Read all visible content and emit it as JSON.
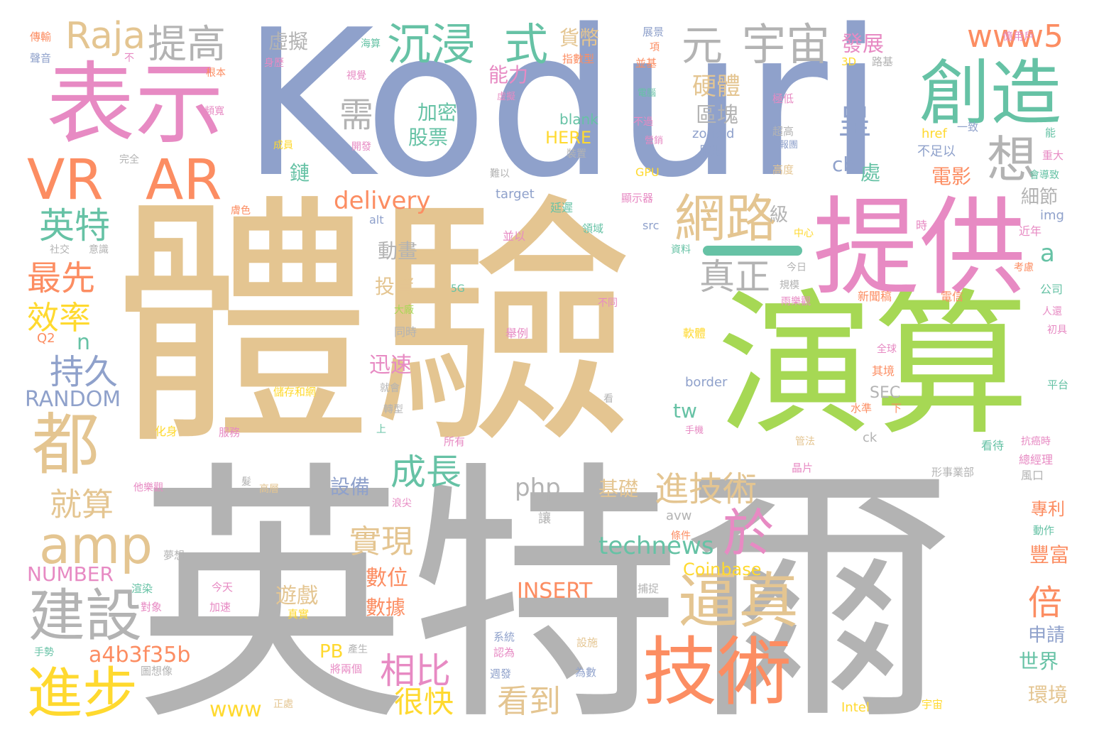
{
  "palette": {
    "tan": "#E4C591",
    "periwinkle": "#8FA1CB",
    "green": "#A6D854",
    "pink": "#E78AC3",
    "orange": "#FC8D62",
    "teal": "#66C2A5",
    "gray": "#B3B3B3",
    "yellow": "#FFD92F"
  },
  "words": [
    {
      "text": "體驗",
      "color": "tan"
    },
    {
      "text": "Koduri",
      "color": "periwinkle"
    },
    {
      "text": "英特爾",
      "color": "gray"
    },
    {
      "text": "演算",
      "color": "green"
    },
    {
      "text": "提供",
      "color": "pink"
    },
    {
      "text": "表示",
      "color": "pink"
    },
    {
      "text": "創造",
      "color": "teal"
    },
    {
      "text": "VR",
      "color": "orange"
    },
    {
      "text": "AR",
      "color": "orange"
    },
    {
      "text": "技術",
      "color": "orange"
    },
    {
      "text": "都",
      "color": "tan"
    },
    {
      "text": "網路",
      "color": "tan"
    },
    {
      "text": "逼真",
      "color": "tan"
    },
    {
      "text": "建設",
      "color": "gray"
    },
    {
      "text": "進步",
      "color": "yellow"
    },
    {
      "text": "amp",
      "color": "tan"
    },
    {
      "text": "沉浸",
      "color": "teal"
    },
    {
      "text": "式",
      "color": "teal"
    },
    {
      "text": "元",
      "color": "gray"
    },
    {
      "text": "宇宙",
      "color": "gray"
    },
    {
      "text": "提高",
      "color": "gray"
    },
    {
      "text": "Raja",
      "color": "tan"
    },
    {
      "text": "想",
      "color": "gray"
    },
    {
      "text": "英特",
      "color": "teal"
    },
    {
      "text": "最先",
      "color": "orange"
    },
    {
      "text": "效率",
      "color": "yellow"
    },
    {
      "text": "持久",
      "color": "periwinkle"
    },
    {
      "text": "就算",
      "color": "tan"
    },
    {
      "text": "於",
      "color": "pink"
    },
    {
      "text": "進技術",
      "color": "tan"
    },
    {
      "text": "真正",
      "color": "gray"
    },
    {
      "text": "成長",
      "color": "teal"
    },
    {
      "text": "相比",
      "color": "pink"
    },
    {
      "text": "很快",
      "color": "yellow"
    },
    {
      "text": "看到",
      "color": "tan"
    },
    {
      "text": "實現",
      "color": "tan"
    },
    {
      "text": "www5",
      "color": "orange"
    },
    {
      "text": "需",
      "color": "gray"
    },
    {
      "text": "呈",
      "color": "periwinkle"
    },
    {
      "text": "倍",
      "color": "orange"
    },
    {
      "text": "technews",
      "color": "teal"
    },
    {
      "text": "php",
      "color": "gray"
    },
    {
      "text": "delivery",
      "color": "orange"
    },
    {
      "text": "a4b3f35b",
      "color": "orange"
    },
    {
      "text": "www",
      "color": "yellow"
    },
    {
      "text": "INSERT",
      "color": "orange"
    },
    {
      "text": "Coinbase",
      "color": "yellow"
    },
    {
      "text": "RANDOM",
      "color": "periwinkle"
    },
    {
      "text": "NUMBER",
      "color": "pink"
    },
    {
      "text": "硬體",
      "color": "tan"
    },
    {
      "text": "區塊",
      "color": "gray"
    },
    {
      "text": "發展",
      "color": "pink"
    },
    {
      "text": "貨幣",
      "color": "tan"
    },
    {
      "text": "虛擬",
      "color": "gray"
    },
    {
      "text": "能力",
      "color": "pink"
    },
    {
      "text": "加密",
      "color": "teal"
    },
    {
      "text": "股票",
      "color": "teal"
    },
    {
      "text": "鏈",
      "color": "teal"
    },
    {
      "text": "電影",
      "color": "orange"
    },
    {
      "text": "cb",
      "color": "periwinkle"
    },
    {
      "text": "處",
      "color": "teal"
    },
    {
      "text": "細節",
      "color": "gray"
    },
    {
      "text": "級",
      "color": "gray"
    },
    {
      "text": "動畫",
      "color": "gray"
    },
    {
      "text": "投資",
      "color": "tan"
    },
    {
      "text": "迅速",
      "color": "pink"
    },
    {
      "text": "a",
      "color": "teal"
    },
    {
      "text": "n",
      "color": "teal"
    },
    {
      "text": "tw",
      "color": "teal"
    },
    {
      "text": "SEC",
      "color": "gray"
    },
    {
      "text": "世界",
      "color": "teal"
    },
    {
      "text": "申請",
      "color": "periwinkle"
    },
    {
      "text": "環境",
      "color": "tan"
    },
    {
      "text": "豐富",
      "color": "orange"
    },
    {
      "text": "專利",
      "color": "orange"
    },
    {
      "text": "設備",
      "color": "periwinkle"
    },
    {
      "text": "基礎",
      "color": "tan"
    },
    {
      "text": "數位",
      "color": "orange"
    },
    {
      "text": "數據",
      "color": "orange"
    },
    {
      "text": "遊戲",
      "color": "tan"
    },
    {
      "text": "PB",
      "color": "yellow"
    },
    {
      "text": "HERE",
      "color": "yellow"
    },
    {
      "text": "blank",
      "color": "teal"
    },
    {
      "text": "zoneid",
      "color": "periwinkle"
    },
    {
      "text": "服裝",
      "color": "periwinkle"
    },
    {
      "text": "href",
      "color": "yellow"
    },
    {
      "text": "一致",
      "color": "periwinkle"
    },
    {
      "text": "不足以",
      "color": "periwinkle"
    },
    {
      "text": "target",
      "color": "periwinkle"
    },
    {
      "text": "GPU",
      "color": "yellow"
    },
    {
      "text": "img",
      "color": "periwinkle"
    },
    {
      "text": "src",
      "color": "periwinkle"
    },
    {
      "text": "alt",
      "color": "periwinkle"
    },
    {
      "text": "border",
      "color": "periwinkle"
    },
    {
      "text": "ck",
      "color": "gray"
    },
    {
      "text": "avw",
      "color": "gray"
    },
    {
      "text": "Intel",
      "color": "yellow"
    },
    {
      "text": "Q2",
      "color": "orange"
    },
    {
      "text": "延遲",
      "color": "teal"
    },
    {
      "text": "傳輸",
      "color": "orange"
    },
    {
      "text": "聲音",
      "color": "periwinkle"
    },
    {
      "text": "不",
      "color": "pink"
    },
    {
      "text": "根本",
      "color": "orange"
    },
    {
      "text": "頻寬",
      "color": "pink"
    },
    {
      "text": "身歷",
      "color": "pink"
    },
    {
      "text": "視覺",
      "color": "pink"
    },
    {
      "text": "指數型",
      "color": "orange"
    },
    {
      "text": "億用戶",
      "color": "pink"
    },
    {
      "text": "展景",
      "color": "periwinkle"
    },
    {
      "text": "並基",
      "color": "orange"
    },
    {
      "text": "3D",
      "color": "yellow"
    },
    {
      "text": "路基",
      "color": "gray"
    },
    {
      "text": "極低",
      "color": "pink"
    },
    {
      "text": "不過",
      "color": "pink"
    },
    {
      "text": "超高",
      "color": "gray"
    },
    {
      "text": "成員",
      "color": "yellow"
    },
    {
      "text": "開發",
      "color": "pink"
    },
    {
      "text": "完全",
      "color": "gray"
    },
    {
      "text": "裝置",
      "color": "gray"
    },
    {
      "text": "難以",
      "color": "gray"
    },
    {
      "text": "高度",
      "color": "tan"
    },
    {
      "text": "重大",
      "color": "pink"
    },
    {
      "text": "會導致",
      "color": "teal"
    },
    {
      "text": "顯示器",
      "color": "pink"
    },
    {
      "text": "領域",
      "color": "teal"
    },
    {
      "text": "膚色",
      "color": "orange"
    },
    {
      "text": "社交",
      "color": "gray"
    },
    {
      "text": "意識",
      "color": "gray"
    },
    {
      "text": "並以",
      "color": "pink"
    },
    {
      "text": "中心",
      "color": "yellow"
    },
    {
      "text": "時",
      "color": "pink"
    },
    {
      "text": "近年",
      "color": "pink"
    },
    {
      "text": "資料",
      "color": "teal"
    },
    {
      "text": "今日",
      "color": "gray"
    },
    {
      "text": "規模",
      "color": "gray"
    },
    {
      "text": "考慮",
      "color": "orange"
    },
    {
      "text": "公司",
      "color": "teal"
    },
    {
      "text": "5G",
      "color": "teal"
    },
    {
      "text": "大廠",
      "color": "green"
    },
    {
      "text": "不同",
      "color": "pink"
    },
    {
      "text": "雨樂觀",
      "color": "pink"
    },
    {
      "text": "新聞稿",
      "color": "orange"
    },
    {
      "text": "電信",
      "color": "orange"
    },
    {
      "text": "人還",
      "color": "pink"
    },
    {
      "text": "初具",
      "color": "pink"
    },
    {
      "text": "同時",
      "color": "gray"
    },
    {
      "text": "舉例",
      "color": "pink"
    },
    {
      "text": "軟體",
      "color": "yellow"
    },
    {
      "text": "全球",
      "color": "pink"
    },
    {
      "text": "其境",
      "color": "orange"
    },
    {
      "text": "平台",
      "color": "teal"
    },
    {
      "text": "儲存和網",
      "color": "yellow"
    },
    {
      "text": "就會",
      "color": "gray"
    },
    {
      "text": "轉型",
      "color": "gray"
    },
    {
      "text": "看",
      "color": "gray"
    },
    {
      "text": "水準",
      "color": "orange"
    },
    {
      "text": "下",
      "color": "orange"
    },
    {
      "text": "化身",
      "color": "yellow"
    },
    {
      "text": "服務",
      "color": "pink"
    },
    {
      "text": "上",
      "color": "teal"
    },
    {
      "text": "所有",
      "color": "pink"
    },
    {
      "text": "手機",
      "color": "pink"
    },
    {
      "text": "管法",
      "color": "tan"
    },
    {
      "text": "看待",
      "color": "teal"
    },
    {
      "text": "抗癌時",
      "color": "pink"
    },
    {
      "text": "總經理",
      "color": "pink"
    },
    {
      "text": "他樂觀",
      "color": "pink"
    },
    {
      "text": "髮",
      "color": "gray"
    },
    {
      "text": "高層",
      "color": "tan"
    },
    {
      "text": "晶片",
      "color": "pink"
    },
    {
      "text": "形事業部",
      "color": "gray"
    },
    {
      "text": "風口",
      "color": "gray"
    },
    {
      "text": "浪尖",
      "color": "pink"
    },
    {
      "text": "讓",
      "color": "gray"
    },
    {
      "text": "條件",
      "color": "orange"
    },
    {
      "text": "動作",
      "color": "teal"
    },
    {
      "text": "夢想",
      "color": "gray"
    },
    {
      "text": "渲染",
      "color": "teal"
    },
    {
      "text": "今天",
      "color": "pink"
    },
    {
      "text": "捕捉",
      "color": "gray"
    },
    {
      "text": "對象",
      "color": "pink"
    },
    {
      "text": "加速",
      "color": "pink"
    },
    {
      "text": "真實",
      "color": "yellow"
    },
    {
      "text": "手勢",
      "color": "teal"
    },
    {
      "text": "產生",
      "color": "gray"
    },
    {
      "text": "系統",
      "color": "periwinkle"
    },
    {
      "text": "認為",
      "color": "pink"
    },
    {
      "text": "設施",
      "color": "tan"
    },
    {
      "text": "將兩個",
      "color": "pink"
    },
    {
      "text": "週發",
      "color": "periwinkle"
    },
    {
      "text": "為數",
      "color": "periwinkle"
    },
    {
      "text": "圖想像",
      "color": "gray"
    },
    {
      "text": "正處",
      "color": "tan"
    },
    {
      "text": "宇宙",
      "color": "yellow"
    },
    {
      "text": "海算",
      "color": "teal"
    },
    {
      "text": "電腦",
      "color": "teal"
    },
    {
      "text": "營銷",
      "color": "pink"
    },
    {
      "text": "報團",
      "color": "periwinkle"
    },
    {
      "text": "虛擬",
      "color": "pink"
    },
    {
      "text": "項",
      "color": "orange"
    },
    {
      "text": "能",
      "color": "teal"
    }
  ]
}
